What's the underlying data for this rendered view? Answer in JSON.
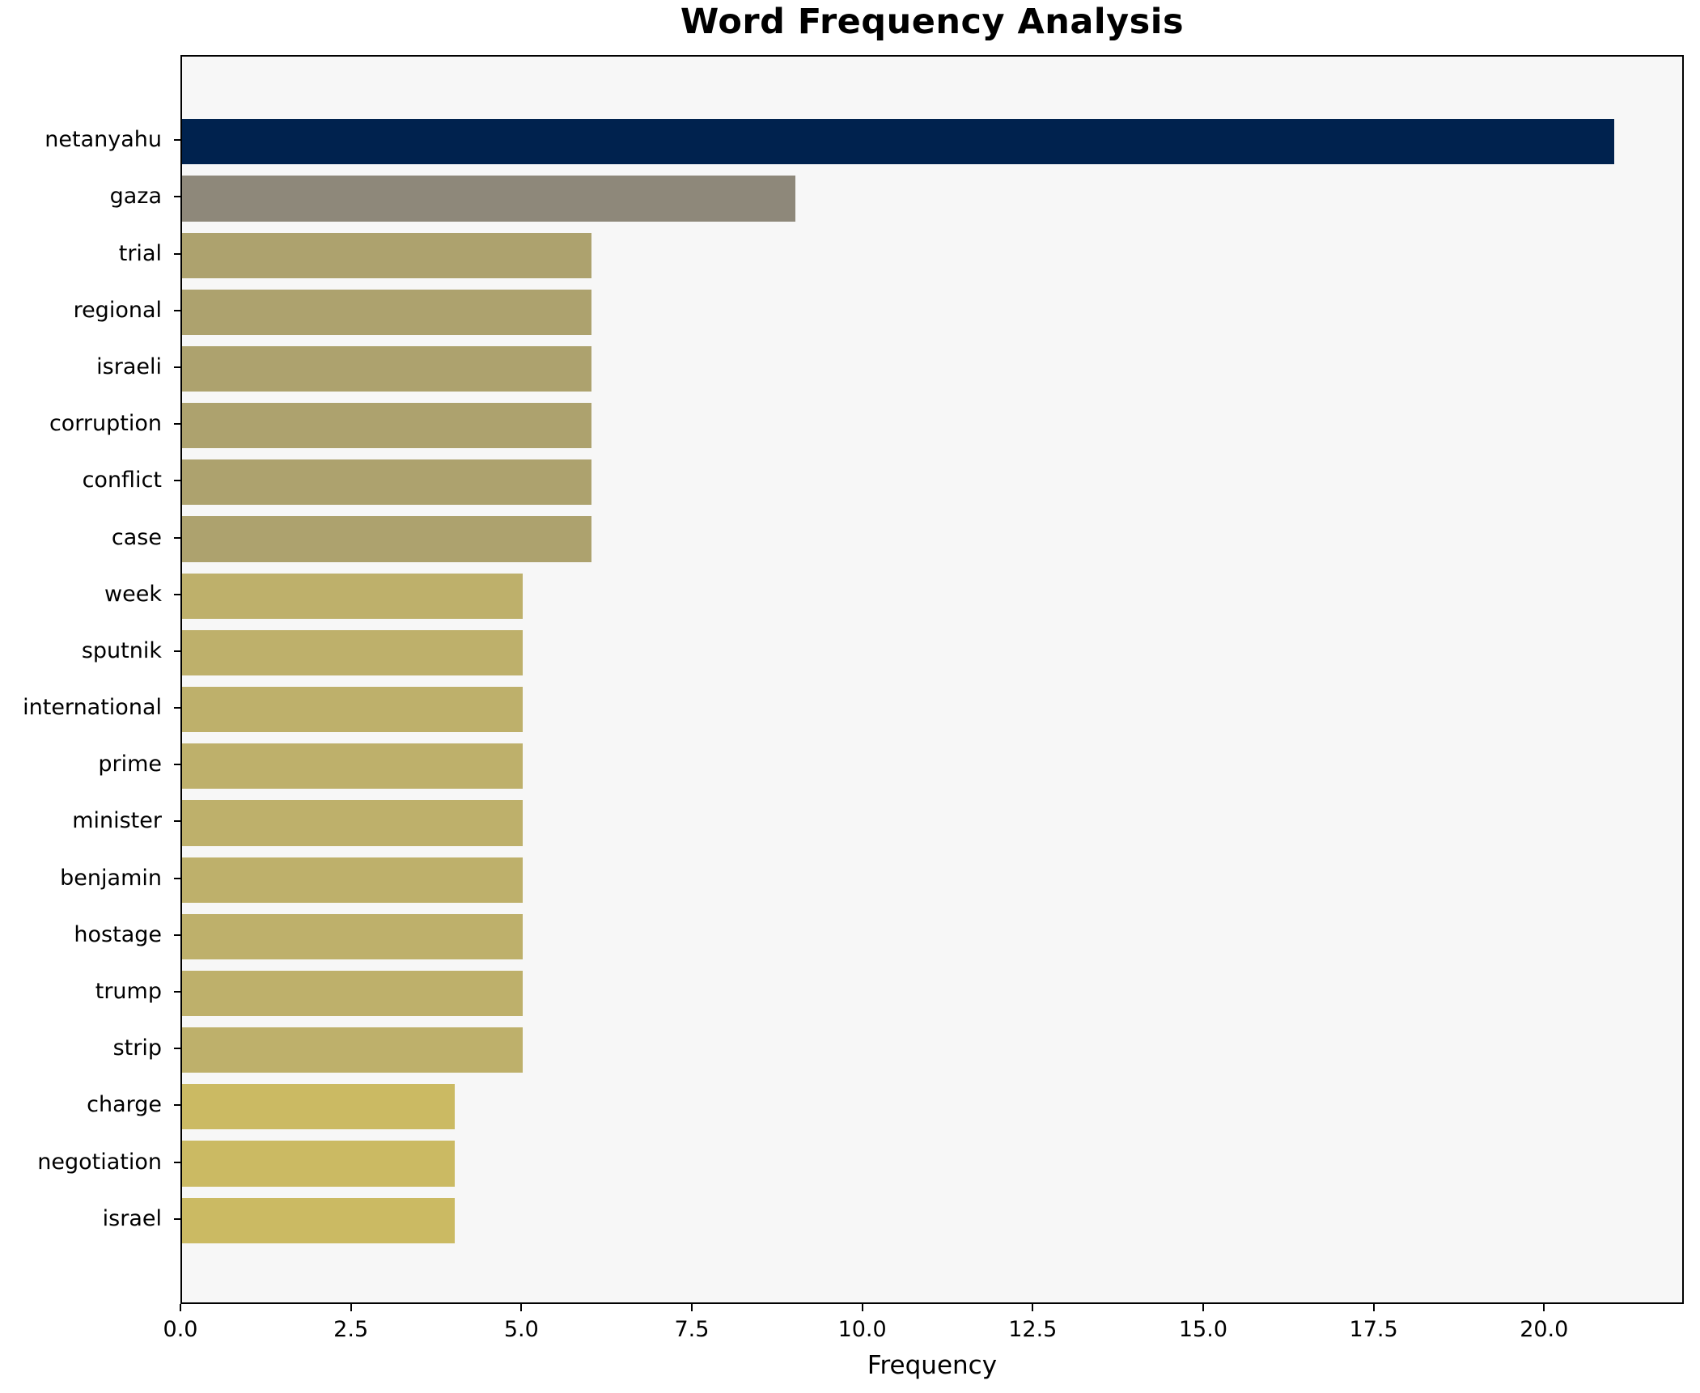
{
  "chart_data": {
    "type": "bar",
    "orientation": "horizontal",
    "title": "Word Frequency Analysis",
    "xlabel": "Frequency",
    "ylabel": "",
    "categories": [
      "netanyahu",
      "gaza",
      "trial",
      "regional",
      "israeli",
      "corruption",
      "conflict",
      "case",
      "week",
      "sputnik",
      "international",
      "prime",
      "minister",
      "benjamin",
      "hostage",
      "trump",
      "strip",
      "charge",
      "negotiation",
      "israel"
    ],
    "values": [
      21,
      9,
      6,
      6,
      6,
      6,
      6,
      6,
      5,
      5,
      5,
      5,
      5,
      5,
      5,
      5,
      5,
      4,
      4,
      4
    ],
    "bar_colors": [
      "#00224e",
      "#8e887a",
      "#ada26e",
      "#ada26e",
      "#ada26e",
      "#ada26e",
      "#ada26e",
      "#ada26e",
      "#beb06b",
      "#beb06b",
      "#beb06b",
      "#beb06b",
      "#beb06b",
      "#beb06b",
      "#beb06b",
      "#beb06b",
      "#beb06b",
      "#cbba63",
      "#cbba63",
      "#cbba63"
    ],
    "xlim": [
      0,
      22.05
    ],
    "xticks": [
      0,
      2.5,
      5,
      7.5,
      10,
      12.5,
      15,
      17.5,
      20
    ],
    "xtick_labels": [
      "0.0",
      "2.5",
      "5.0",
      "7.5",
      "10.0",
      "12.5",
      "15.0",
      "17.5",
      "20.0"
    ],
    "grid": false,
    "legend": "none",
    "plot_background": "#f7f7f7",
    "figure_background": "#ffffff",
    "spine_color": "#000000",
    "bar_height_fraction": 0.8
  }
}
